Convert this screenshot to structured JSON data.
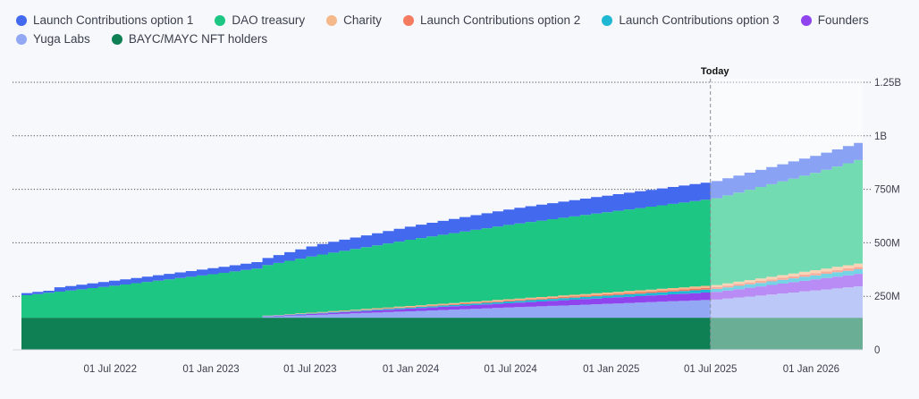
{
  "chart_data": {
    "type": "area",
    "stacked": true,
    "title": "",
    "xlabel": "",
    "ylabel": "",
    "x_range": [
      "2022-01-20",
      "2026-04-05"
    ],
    "ylim": [
      0,
      1250000000
    ],
    "grid": true,
    "y_ticks": [
      {
        "value": 0,
        "label": "0"
      },
      {
        "value": 250000000,
        "label": "250M"
      },
      {
        "value": 500000000,
        "label": "500M"
      },
      {
        "value": 750000000,
        "label": "750M"
      },
      {
        "value": 1000000000,
        "label": "1B"
      },
      {
        "value": 1250000000,
        "label": "1.25B"
      }
    ],
    "x_ticks": [
      {
        "date": "2022-07-01",
        "label": "01 Jul 2022"
      },
      {
        "date": "2023-01-01",
        "label": "01 Jan 2023"
      },
      {
        "date": "2023-07-01",
        "label": "01 Jul 2023"
      },
      {
        "date": "2024-01-01",
        "label": "01 Jan 2024"
      },
      {
        "date": "2024-07-01",
        "label": "01 Jul 2024"
      },
      {
        "date": "2025-01-01",
        "label": "01 Jan 2025"
      },
      {
        "date": "2025-07-01",
        "label": "01 Jul 2025"
      },
      {
        "date": "2026-01-01",
        "label": "01 Jan 2026"
      }
    ],
    "today": {
      "date": "2025-07-01",
      "label": "Today"
    },
    "legend_rows": [
      [
        "Launch Contributions option 1",
        "DAO treasury",
        "Charity",
        "Launch Contributions option 2",
        "Launch Contributions option 3",
        "Founders"
      ],
      [
        "Yuga Labs",
        "BAYC/MAYC NFT holders"
      ]
    ],
    "series": [
      {
        "name": "BAYC/MAYC NFT holders",
        "color": "#0f7f54",
        "points": [
          [
            "2022-01-20",
            150000000
          ],
          [
            "2026-04-05",
            150000000
          ]
        ]
      },
      {
        "name": "Yuga Labs",
        "color": "#93a8f4",
        "points": [
          [
            "2022-01-20",
            0
          ],
          [
            "2023-03-17",
            0
          ],
          [
            "2023-03-18",
            3000000
          ],
          [
            "2025-07-01",
            84000000
          ],
          [
            "2026-04-05",
            150000000
          ]
        ]
      },
      {
        "name": "Founders",
        "color": "#8f44ee",
        "points": [
          [
            "2022-01-20",
            0
          ],
          [
            "2023-03-17",
            0
          ],
          [
            "2023-03-18",
            1000000
          ],
          [
            "2025-07-01",
            36000000
          ],
          [
            "2026-04-05",
            60000000
          ]
        ]
      },
      {
        "name": "Launch Contributions option 3",
        "color": "#1fb8d4",
        "points": [
          [
            "2022-01-20",
            0
          ],
          [
            "2023-03-17",
            0
          ],
          [
            "2023-03-18",
            1000000
          ],
          [
            "2025-07-01",
            14000000
          ],
          [
            "2026-04-05",
            22000000
          ]
        ]
      },
      {
        "name": "Launch Contributions option 2",
        "color": "#f47a60",
        "points": [
          [
            "2022-01-20",
            0
          ],
          [
            "2023-03-17",
            0
          ],
          [
            "2023-03-18",
            500000
          ],
          [
            "2025-07-01",
            8000000
          ],
          [
            "2026-04-05",
            12000000
          ]
        ]
      },
      {
        "name": "Charity",
        "color": "#f5b88a",
        "points": [
          [
            "2022-01-20",
            0
          ],
          [
            "2023-03-17",
            0
          ],
          [
            "2023-03-18",
            1000000
          ],
          [
            "2025-07-01",
            10000000
          ],
          [
            "2026-04-05",
            15000000
          ]
        ]
      },
      {
        "name": "DAO treasury",
        "color": "#1dc683",
        "points": [
          [
            "2022-01-20",
            105000000
          ],
          [
            "2022-07-01",
            150000000
          ],
          [
            "2023-01-01",
            205000000
          ],
          [
            "2023-07-01",
            265000000
          ],
          [
            "2024-01-01",
            312000000
          ],
          [
            "2024-07-01",
            350000000
          ],
          [
            "2025-01-01",
            378000000
          ],
          [
            "2025-07-01",
            405000000
          ],
          [
            "2026-01-01",
            455000000
          ],
          [
            "2026-04-05",
            490000000
          ]
        ]
      },
      {
        "name": "Launch Contributions option 1",
        "color": "#4369ee",
        "points": [
          [
            "2022-01-20",
            10000000
          ],
          [
            "2022-03-01",
            10000000
          ],
          [
            "2022-03-02",
            20000000
          ],
          [
            "2023-03-17",
            30000000
          ],
          [
            "2023-07-01",
            48000000
          ],
          [
            "2024-01-01",
            62000000
          ],
          [
            "2024-07-01",
            73000000
          ],
          [
            "2025-01-01",
            78000000
          ],
          [
            "2025-07-01",
            80000000
          ],
          [
            "2026-01-01",
            80000000
          ],
          [
            "2026-04-05",
            80000000
          ]
        ]
      }
    ]
  }
}
